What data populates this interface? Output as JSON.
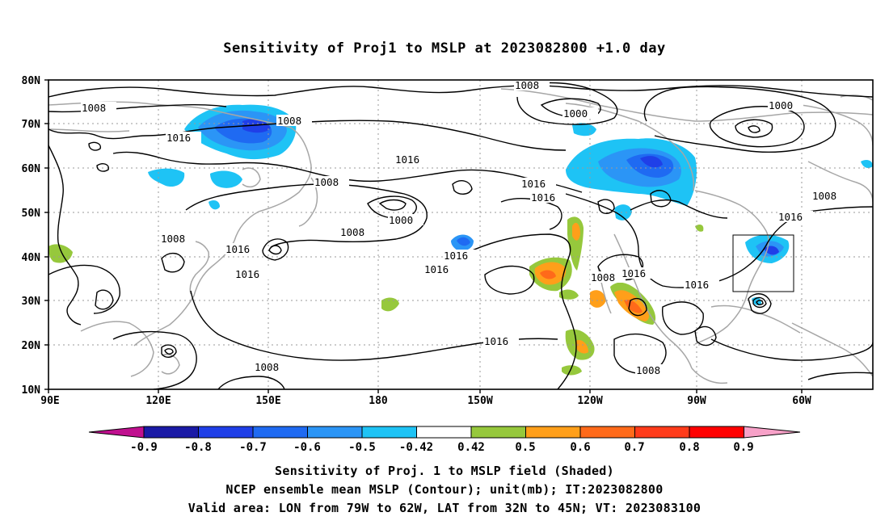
{
  "title": "Sensitivity of Proj1 to MSLP at 2023082800 +1.0 day",
  "lat_labels": [
    "80N",
    "70N",
    "60N",
    "50N",
    "40N",
    "30N",
    "20N",
    "10N"
  ],
  "lon_labels": [
    "90E",
    "120E",
    "150E",
    "180",
    "150W",
    "120W",
    "90W",
    "60W"
  ],
  "contour_labels": [
    "1008",
    "1008",
    "1016",
    "1008",
    "1016",
    "1016",
    "1016",
    "1008",
    "1000",
    "1008",
    "1000",
    "1016",
    "1016",
    "1016",
    "1016",
    "1008",
    "1016",
    "1016",
    "1000",
    "1008",
    "1008",
    "1016",
    "1016",
    "1008"
  ],
  "colorbar": {
    "labels": [
      "-0.9",
      "-0.8",
      "-0.7",
      "-0.6",
      "-0.5",
      "-0.42",
      "0.42",
      "0.5",
      "0.6",
      "0.7",
      "0.8",
      "0.9"
    ],
    "colors": [
      "#1a1aa6",
      "#1f3fe8",
      "#1f6af2",
      "#2b95f6",
      "#1ec3f5",
      "#ffffff",
      "#96c83c",
      "#ff9f1a",
      "#ff6a1a",
      "#ff3b1a",
      "#ff0000"
    ],
    "low_arrow_color": "#c0108f",
    "high_arrow_color": "#f7a1c8"
  },
  "captions": [
    "Sensitivity of Proj. 1 to MSLP field (Shaded)",
    "NCEP ensemble mean MSLP (Contour); unit(mb); IT:2023082800",
    "Valid area: LON from 79W to 62W, LAT from 32N to 45N; VT: 2023083100"
  ]
}
